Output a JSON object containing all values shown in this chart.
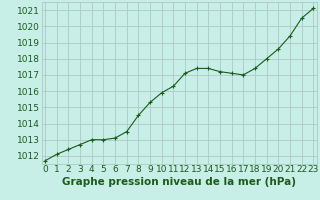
{
  "x": [
    0,
    1,
    2,
    3,
    4,
    5,
    6,
    7,
    8,
    9,
    10,
    11,
    12,
    13,
    14,
    15,
    16,
    17,
    18,
    19,
    20,
    21,
    22,
    23
  ],
  "y": [
    1011.7,
    1012.1,
    1012.4,
    1012.7,
    1013.0,
    1013.0,
    1013.1,
    1013.5,
    1014.5,
    1015.3,
    1015.9,
    1016.3,
    1017.1,
    1017.4,
    1017.4,
    1017.2,
    1017.1,
    1017.0,
    1017.4,
    1018.0,
    1018.6,
    1019.4,
    1020.5,
    1021.1
  ],
  "line_color": "#1a5c1a",
  "marker": "+",
  "marker_size": 3,
  "marker_lw": 0.8,
  "line_width": 0.8,
  "bg_color": "#c8eee8",
  "grid_color": "#afc8c2",
  "xlabel": "Graphe pression niveau de la mer (hPa)",
  "xlabel_color": "#1a5c1a",
  "xlabel_fontsize": 7.5,
  "tick_label_color": "#1a5c1a",
  "tick_label_fontsize": 6.5,
  "ylim": [
    1011.5,
    1021.5
  ],
  "xlim": [
    -0.3,
    23.3
  ],
  "yticks": [
    1012,
    1013,
    1014,
    1015,
    1016,
    1017,
    1018,
    1019,
    1020,
    1021
  ],
  "xticks": [
    0,
    1,
    2,
    3,
    4,
    5,
    6,
    7,
    8,
    9,
    10,
    11,
    12,
    13,
    14,
    15,
    16,
    17,
    18,
    19,
    20,
    21,
    22,
    23
  ]
}
